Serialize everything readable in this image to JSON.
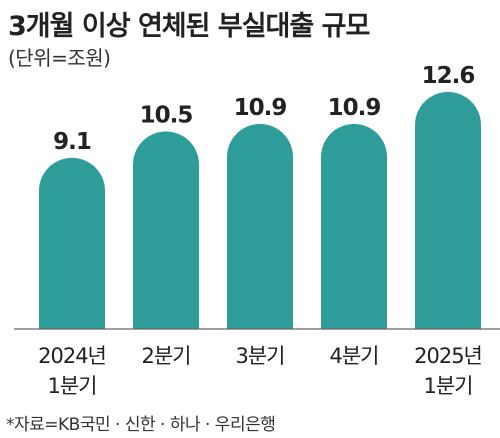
{
  "chart_data": {
    "type": "bar",
    "title": "3개월 이상 연체된 부실대출 규모",
    "unit_label": "(단위=조원)",
    "categories": [
      [
        "2024년",
        "1분기"
      ],
      [
        "2분기"
      ],
      [
        "3분기"
      ],
      [
        "4분기"
      ],
      [
        "2025년",
        "1분기"
      ]
    ],
    "values": [
      9.1,
      10.5,
      10.9,
      10.9,
      12.6
    ],
    "value_labels": [
      "9.1",
      "10.5",
      "10.9",
      "10.9",
      "12.6"
    ],
    "ylim": [
      0,
      14
    ],
    "grid": false,
    "bar_color": "#2e9c98",
    "source_note": "*자료=KB국민 · 신한 · 하나 · 우리은행"
  }
}
